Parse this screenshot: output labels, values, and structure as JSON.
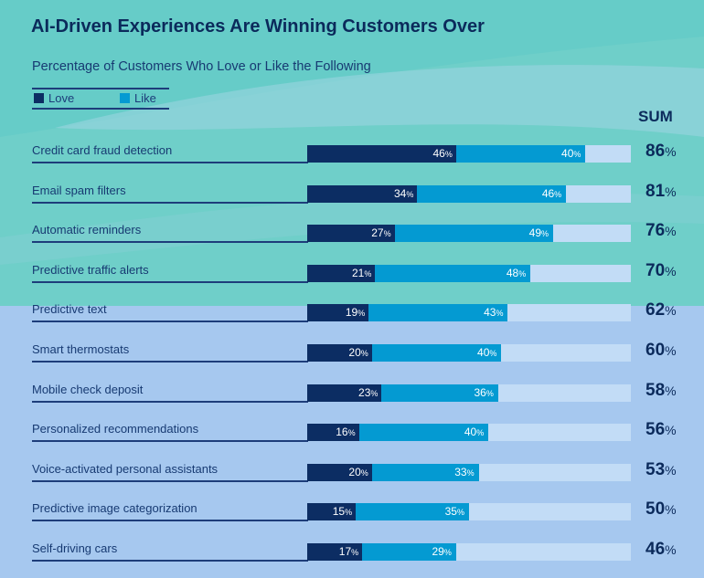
{
  "title": "AI-Driven Experiences Are Winning Customers Over",
  "subtitle": "Percentage of Customers Who Love or Like the Following",
  "legend": {
    "love": "Love",
    "like": "Like"
  },
  "sum_header": "SUM",
  "colors": {
    "love": "#0c2d63",
    "like": "#049ad2",
    "track": "#c2dcf6",
    "background": "#a6c8ef",
    "band": "#6fcfc9"
  },
  "chart_data": {
    "type": "bar",
    "orientation": "horizontal",
    "stacked": true,
    "title": "AI-Driven Experiences Are Winning Customers Over",
    "subtitle": "Percentage of Customers Who Love or Like the Following",
    "unit": "%",
    "categories": [
      "Credit card fraud detection",
      "Email spam filters",
      "Automatic reminders",
      "Predictive traffic alerts",
      "Predictive text",
      "Smart thermostats",
      "Mobile check deposit",
      "Personalized recommendations",
      "Voice-activated personal assistants",
      "Predictive image categorization",
      "Self-driving cars"
    ],
    "series": [
      {
        "name": "Love",
        "values": [
          46,
          34,
          27,
          21,
          19,
          20,
          23,
          16,
          20,
          15,
          17
        ]
      },
      {
        "name": "Like",
        "values": [
          40,
          46,
          49,
          48,
          43,
          40,
          36,
          40,
          33,
          35,
          29
        ]
      }
    ],
    "sum": {
      "name": "SUM",
      "values": [
        86,
        81,
        76,
        70,
        62,
        60,
        58,
        56,
        53,
        50,
        46
      ]
    },
    "xlim": [
      0,
      100
    ],
    "legend_position": "top-left"
  }
}
